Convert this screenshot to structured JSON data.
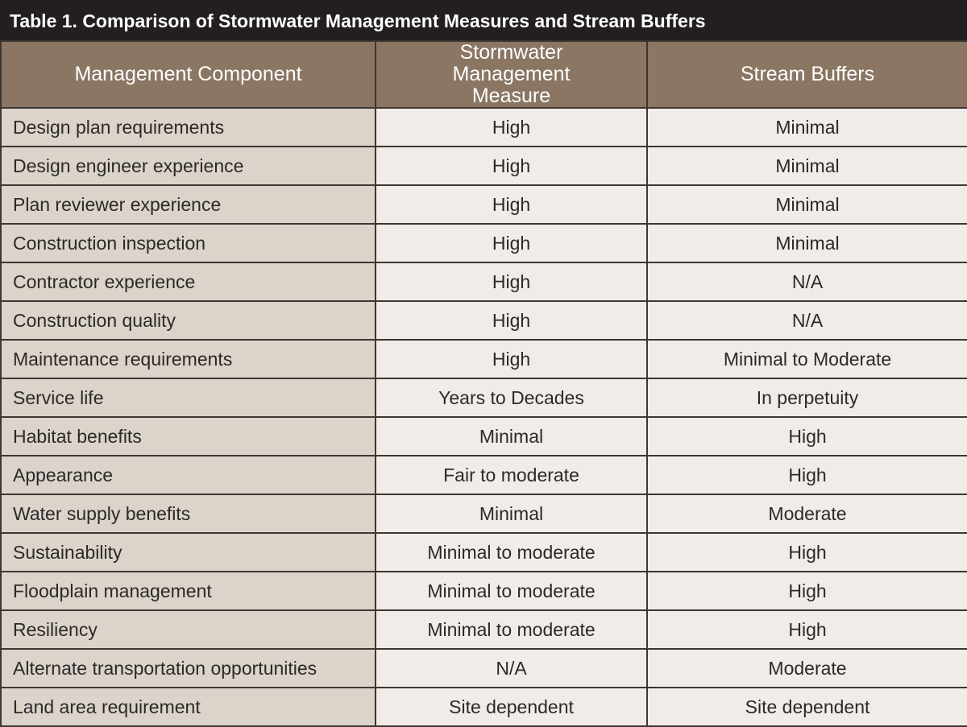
{
  "title": "Table 1. Comparison of Stormwater Management Measures and Stream Buffers",
  "columns": [
    "Management Component",
    "Stormwater Management Measure",
    "Stream Buffers"
  ],
  "rows": [
    [
      "Design plan requirements",
      "High",
      "Minimal"
    ],
    [
      "Design engineer experience",
      "High",
      "Minimal"
    ],
    [
      "Plan reviewer experience",
      "High",
      "Minimal"
    ],
    [
      "Construction inspection",
      "High",
      "Minimal"
    ],
    [
      "Contractor experience",
      "High",
      "N/A"
    ],
    [
      "Construction quality",
      "High",
      "N/A"
    ],
    [
      "Maintenance requirements",
      "High",
      "Minimal to Moderate"
    ],
    [
      "Service life",
      "Years to Decades",
      "In perpetuity"
    ],
    [
      "Habitat benefits",
      "Minimal",
      "High"
    ],
    [
      "Appearance",
      "Fair to moderate",
      "High"
    ],
    [
      "Water supply benefits",
      "Minimal",
      "Moderate"
    ],
    [
      "Sustainability",
      "Minimal to moderate",
      "High"
    ],
    [
      "Floodplain management",
      "Minimal to moderate",
      "High"
    ],
    [
      "Resiliency",
      "Minimal to moderate",
      "High"
    ],
    [
      "Alternate transportation opportunities",
      "N/A",
      "Moderate"
    ],
    [
      "Land area requirement",
      "Site dependent",
      "Site dependent"
    ]
  ]
}
